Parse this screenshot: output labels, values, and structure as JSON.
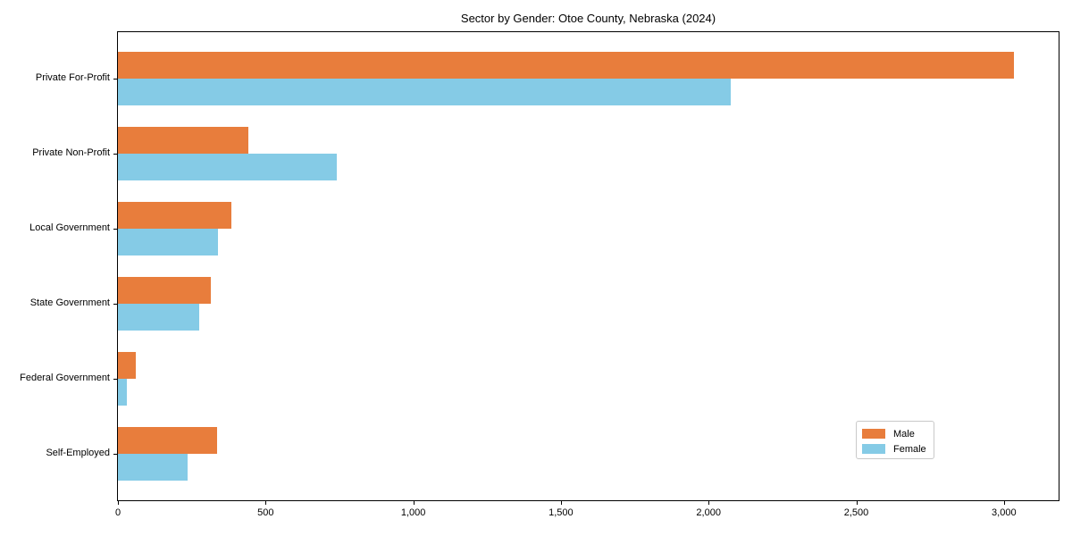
{
  "title": "Sector by Gender: Otoe County, Nebraska (2024)",
  "colors": {
    "male": "#e87d3c",
    "female": "#85cbe6",
    "spine": "#000000",
    "legend_border": "#c9c9c9",
    "background": "#ffffff",
    "text": "#000000"
  },
  "chart_data": {
    "type": "bar",
    "orientation": "horizontal",
    "title": "Sector by Gender: Otoe County, Nebraska (2024)",
    "xlabel": "",
    "ylabel": "",
    "categories": [
      "Private For-Profit",
      "Private Non-Profit",
      "Local Government",
      "State Government",
      "Federal Government",
      "Self-Employed"
    ],
    "series": [
      {
        "name": "Male",
        "color": "#e87d3c",
        "values": [
          3035,
          440,
          385,
          315,
          60,
          335
        ]
      },
      {
        "name": "Female",
        "color": "#85cbe6",
        "values": [
          2075,
          740,
          340,
          275,
          30,
          235
        ]
      }
    ],
    "xlim": [
      0,
      3185
    ],
    "xticks": [
      0,
      500,
      1000,
      1500,
      2000,
      2500,
      3000
    ],
    "xtick_labels": [
      "0",
      "500",
      "1,000",
      "1,500",
      "2,000",
      "2,500",
      "3,000"
    ],
    "legend_position": "lower right",
    "grid": false
  }
}
